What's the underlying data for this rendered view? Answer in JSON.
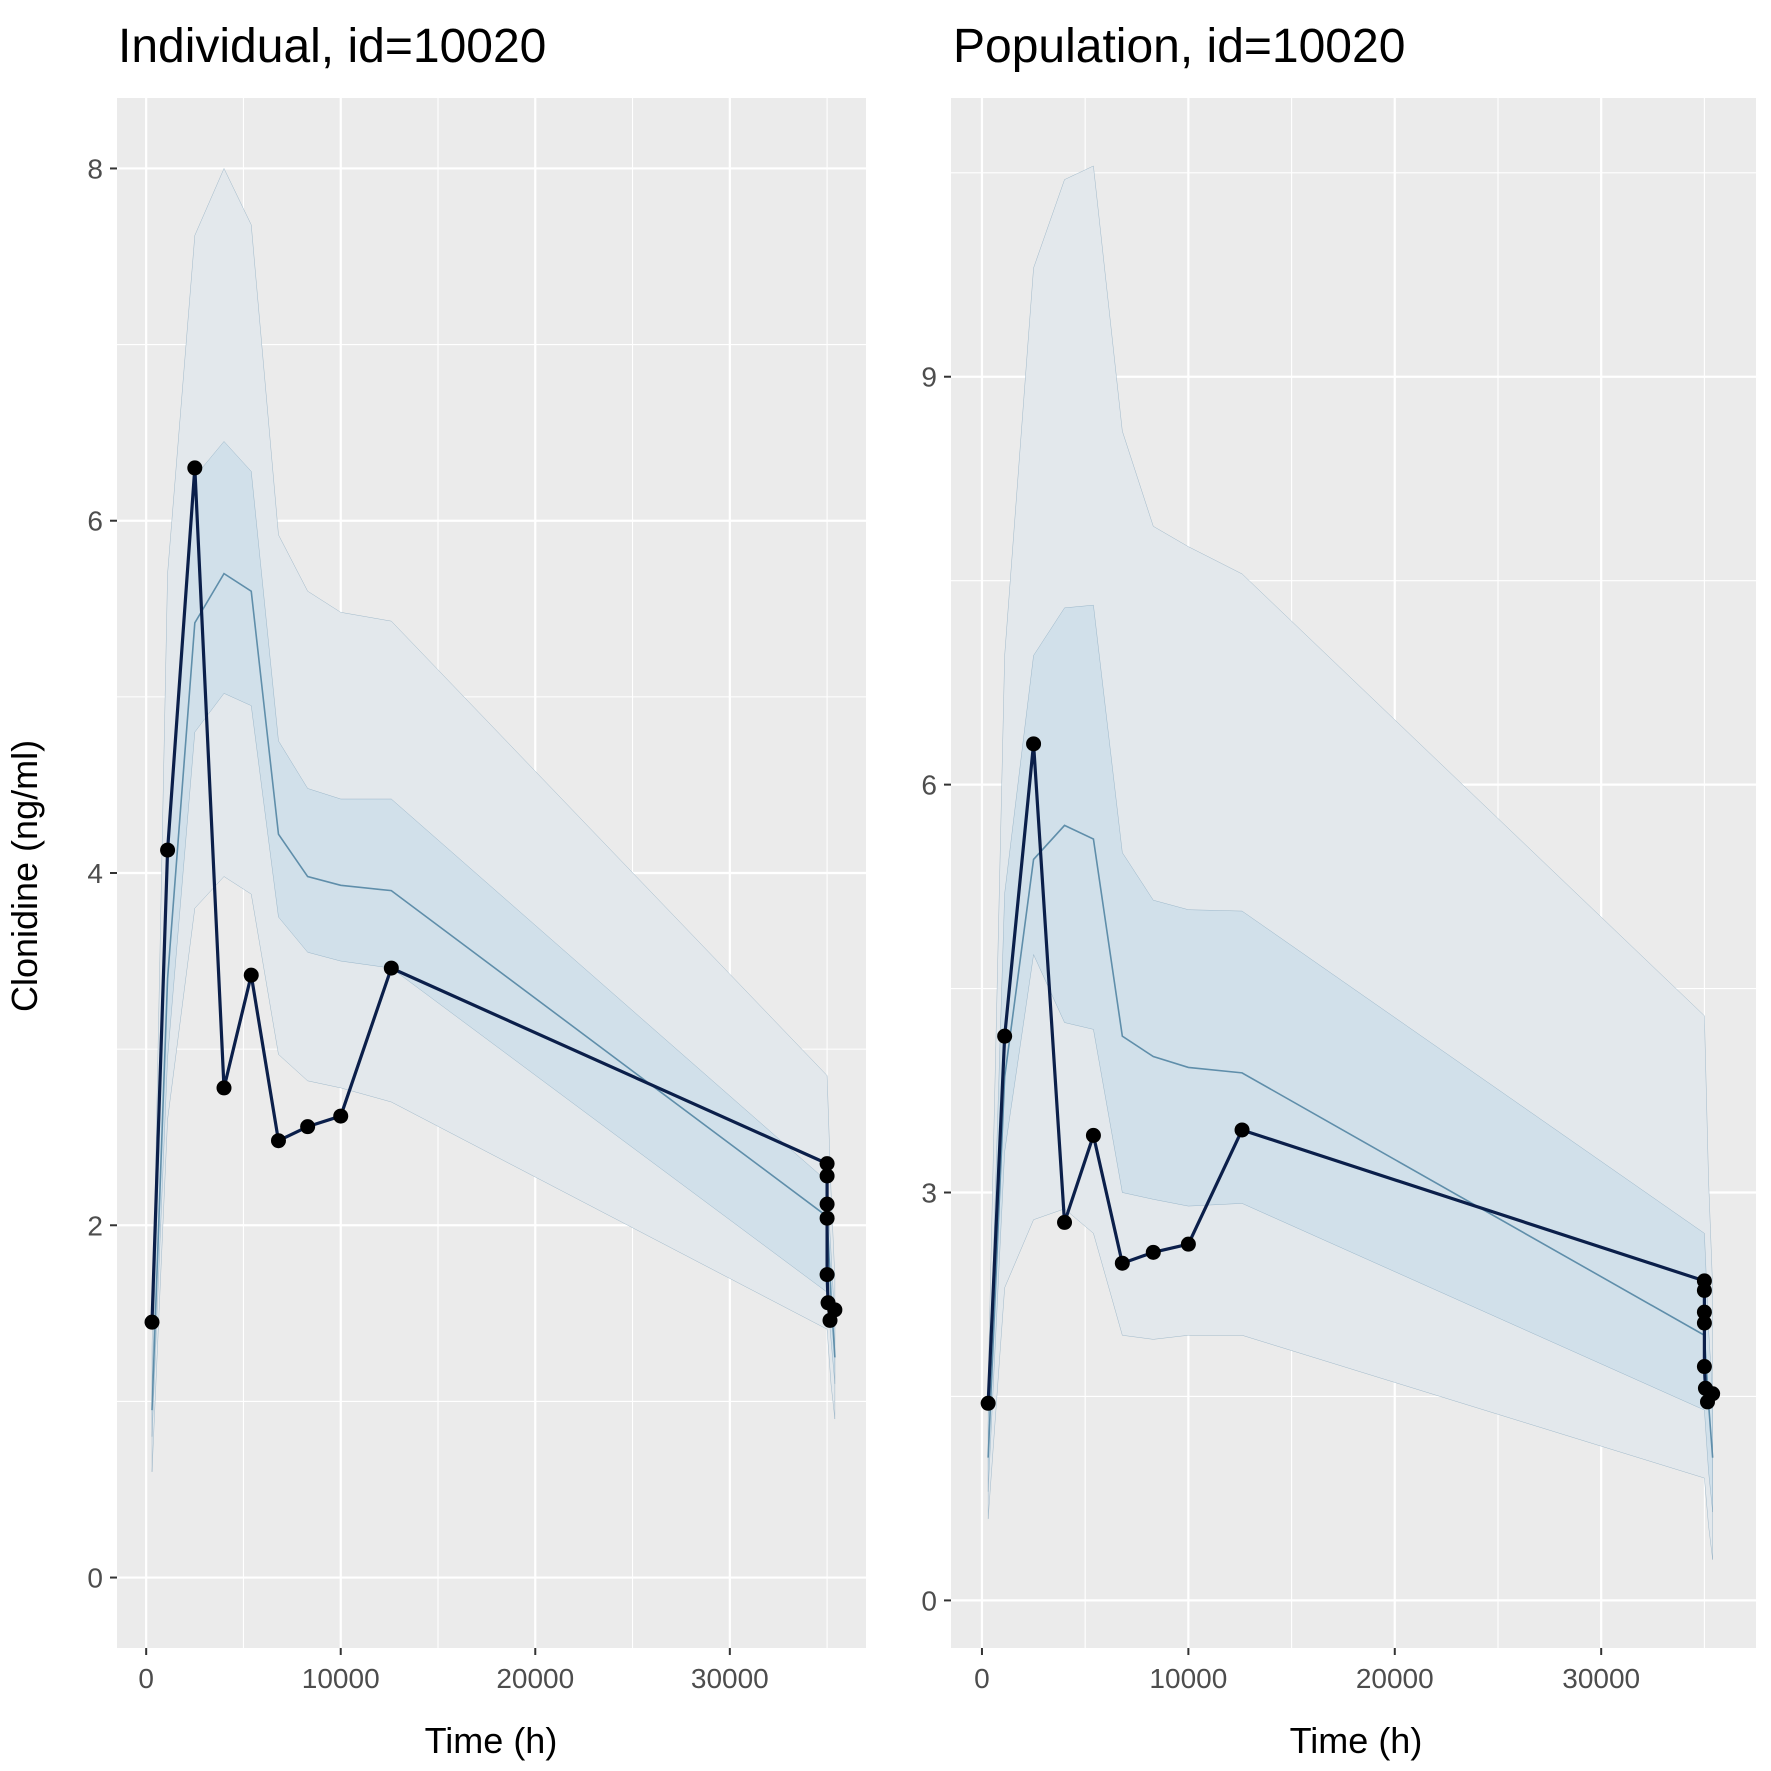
{
  "colors": {
    "panel_background": "#EBEBEB",
    "grid": "#FFFFFF",
    "outer_band": "#E3E8EC",
    "inner_band": "#D1E0EA",
    "band_edge": "#6F98B2",
    "median_line": "#5F8EAA",
    "observed_line": "#0B1F4A",
    "observed_point": "#000000",
    "tick_label": "#4D4D4D"
  },
  "ylabel": "Clonidine (ng/ml)",
  "chart_data": [
    {
      "type": "line",
      "title": "Individual, id=10020",
      "xlabel": "Time (h)",
      "xlim": [
        -1500,
        37000
      ],
      "ylim": [
        -0.4,
        8.4
      ],
      "x_ticks": [
        0,
        10000,
        20000,
        30000
      ],
      "x_tick_labels": [
        "0",
        "10000",
        "20000",
        "30000"
      ],
      "y_ticks": [
        0,
        2,
        4,
        6,
        8
      ],
      "y_tick_labels": [
        "0",
        "2",
        "4",
        "6",
        "8"
      ],
      "prediction_interval": {
        "x": [
          300,
          1100,
          2500,
          4000,
          5400,
          6800,
          8300,
          10000,
          12600,
          35000,
          35200,
          35400
        ],
        "outer_lower": [
          0.6,
          2.6,
          3.8,
          3.98,
          3.88,
          2.97,
          2.82,
          2.78,
          2.7,
          1.41,
          1.1,
          0.9
        ],
        "inner_lower": [
          0.8,
          2.95,
          4.8,
          5.02,
          4.95,
          3.75,
          3.55,
          3.5,
          3.46,
          1.62,
          1.35,
          1.1
        ],
        "median": [
          0.95,
          3.4,
          5.42,
          5.7,
          5.6,
          4.22,
          3.98,
          3.93,
          3.9,
          2.05,
          1.6,
          1.25
        ],
        "inner_upper": [
          1.1,
          4.1,
          6.25,
          6.45,
          6.28,
          4.75,
          4.48,
          4.42,
          4.42,
          2.25,
          1.85,
          1.45
        ],
        "outer_upper": [
          1.3,
          5.7,
          7.62,
          8.0,
          7.68,
          5.92,
          5.6,
          5.48,
          5.43,
          2.85,
          2.2,
          1.7
        ]
      },
      "observed": {
        "x": [
          300,
          1100,
          2500,
          4000,
          5400,
          6800,
          8300,
          10000,
          12600,
          35000,
          35000,
          35000,
          35000,
          35000,
          35050,
          35150,
          35400
        ],
        "y": [
          1.45,
          4.13,
          6.3,
          2.78,
          3.42,
          2.48,
          2.56,
          2.62,
          3.46,
          2.35,
          2.28,
          2.12,
          2.04,
          1.72,
          1.56,
          1.46,
          1.52
        ]
      }
    },
    {
      "type": "line",
      "title": "Population, id=10020",
      "xlabel": "Time (h)",
      "xlim": [
        -1500,
        37500
      ],
      "ylim": [
        -0.35,
        11.05
      ],
      "x_ticks": [
        0,
        10000,
        20000,
        30000
      ],
      "x_tick_labels": [
        "0",
        "10000",
        "20000",
        "30000"
      ],
      "y_ticks": [
        0,
        3,
        6,
        9
      ],
      "y_tick_labels": [
        "0",
        "3",
        "6",
        "9"
      ],
      "prediction_interval": {
        "x": [
          300,
          1100,
          2500,
          4000,
          5400,
          6800,
          8300,
          10000,
          12600,
          35000,
          35200,
          35400
        ],
        "outer_lower": [
          0.6,
          2.3,
          2.8,
          2.88,
          2.7,
          1.95,
          1.92,
          1.95,
          1.95,
          0.9,
          0.55,
          0.3
        ],
        "inner_lower": [
          0.8,
          3.3,
          4.75,
          4.25,
          4.2,
          3.0,
          2.95,
          2.9,
          2.92,
          1.4,
          0.95,
          0.65
        ],
        "median": [
          1.05,
          3.85,
          5.45,
          5.7,
          5.6,
          4.15,
          4.0,
          3.92,
          3.88,
          1.95,
          1.45,
          1.05
        ],
        "inner_upper": [
          1.3,
          5.2,
          6.95,
          7.3,
          7.32,
          5.5,
          5.15,
          5.08,
          5.07,
          2.7,
          2.0,
          1.5
        ],
        "outer_upper": [
          1.6,
          6.95,
          9.8,
          10.45,
          10.55,
          8.6,
          7.9,
          7.75,
          7.55,
          4.3,
          3.1,
          2.3
        ]
      },
      "observed": {
        "x": [
          300,
          1100,
          2500,
          4000,
          5400,
          6800,
          8300,
          10000,
          12600,
          35000,
          35000,
          35000,
          35000,
          35000,
          35050,
          35150,
          35400
        ],
        "y": [
          1.45,
          4.15,
          6.3,
          2.78,
          3.42,
          2.48,
          2.56,
          2.62,
          3.46,
          2.35,
          2.28,
          2.12,
          2.04,
          1.72,
          1.56,
          1.46,
          1.52
        ]
      }
    }
  ]
}
